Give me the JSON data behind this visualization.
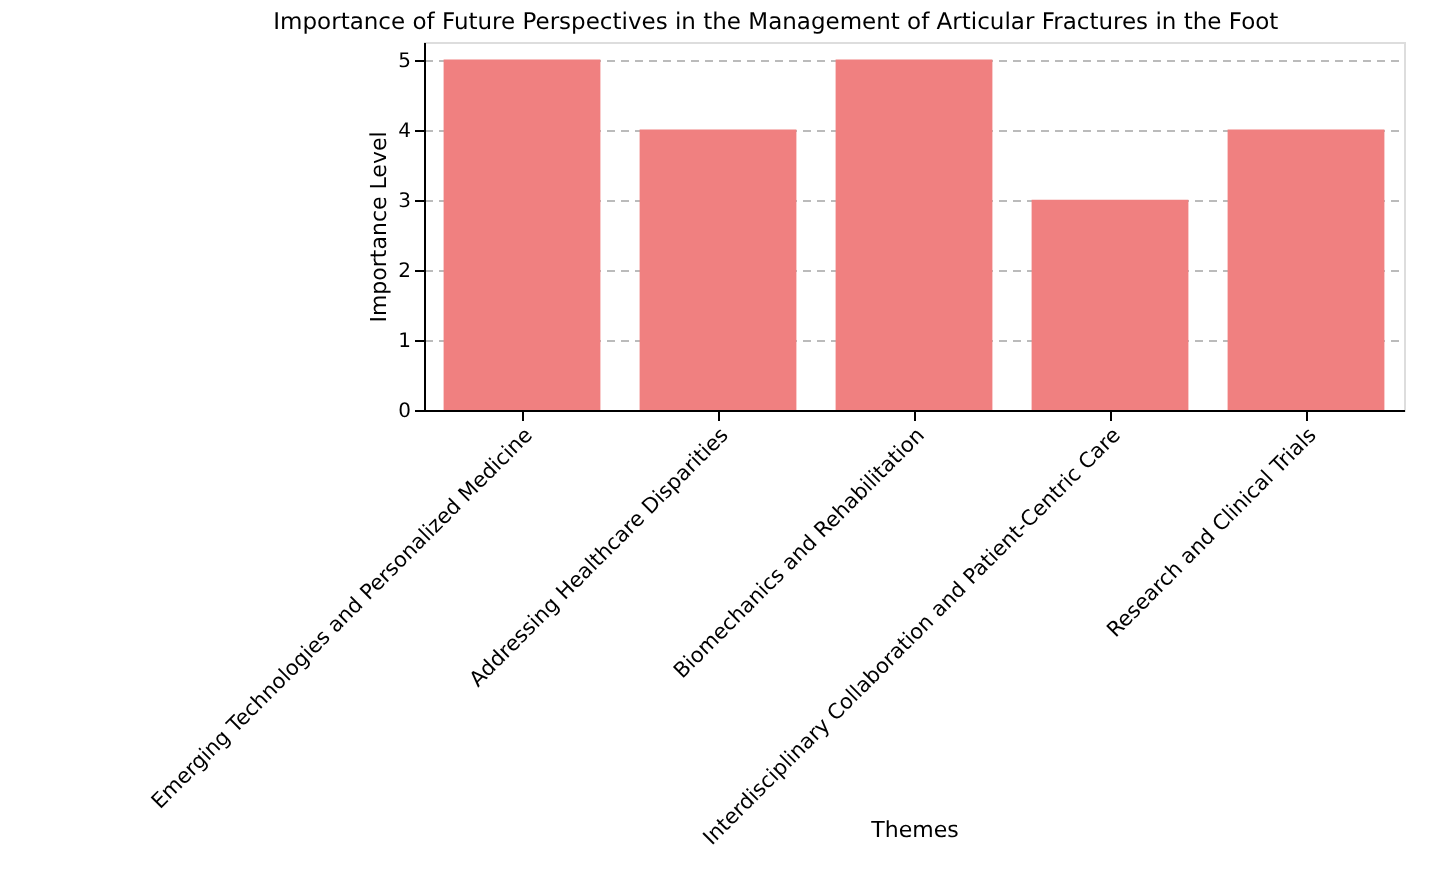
{
  "chart_data": {
    "type": "bar",
    "title": "Importance of Future Perspectives in the Management of Articular Fractures in the Foot",
    "xlabel": "Themes",
    "ylabel": "Importance Level",
    "categories": [
      "Emerging Technologies and Personalized Medicine",
      "Addressing Healthcare Disparities",
      "Biomechanics and Rehabilitation",
      "Interdisciplinary Collaboration and Patient-Centric Care",
      "Research and Clinical Trials"
    ],
    "values": [
      5,
      4,
      5,
      3,
      4
    ],
    "color": "#f08080",
    "ylim": [
      0,
      5.25
    ],
    "yticks": [
      0,
      1,
      2,
      3,
      4,
      5
    ],
    "grid": "y"
  }
}
